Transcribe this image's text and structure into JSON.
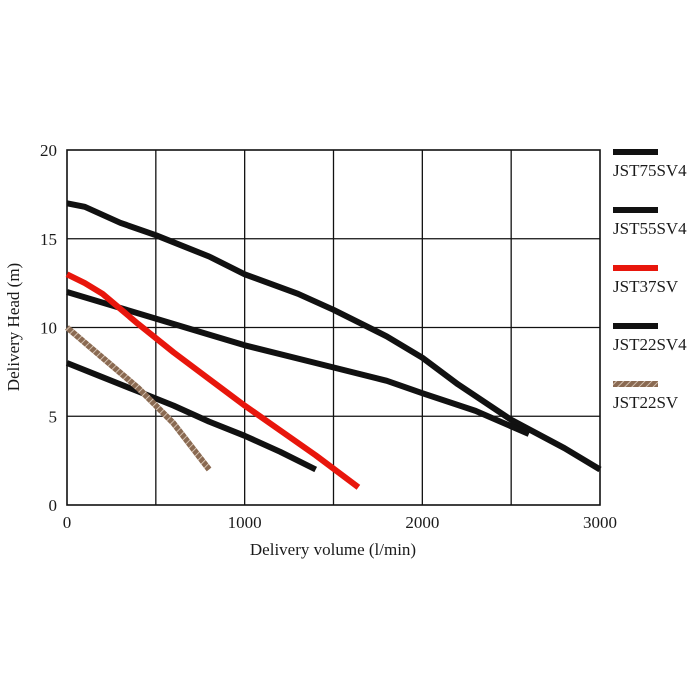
{
  "chart_data": {
    "type": "line",
    "title": "",
    "xlabel": "Delivery volume (l/min)",
    "ylabel": "Delivery Head (m)",
    "xlim": [
      0,
      3000
    ],
    "ylim": [
      0,
      20
    ],
    "x_ticks": [
      "0",
      "1000",
      "2000",
      "3000"
    ],
    "y_ticks": [
      "0",
      "5",
      "10",
      "15",
      "20"
    ],
    "x_grid_step": 500,
    "y_grid_step": 5,
    "grid": true,
    "legend_position": "right",
    "series": [
      {
        "name": "JST75SV4",
        "color": "#111111",
        "pattern": "solid",
        "points": [
          [
            0,
            17
          ],
          [
            100,
            16.8
          ],
          [
            300,
            15.9
          ],
          [
            500,
            15.2
          ],
          [
            800,
            14
          ],
          [
            1000,
            13
          ],
          [
            1300,
            11.9
          ],
          [
            1500,
            11
          ],
          [
            1800,
            9.5
          ],
          [
            2000,
            8.3
          ],
          [
            2200,
            6.8
          ],
          [
            2500,
            4.8
          ],
          [
            2800,
            3.2
          ],
          [
            3000,
            2
          ]
        ]
      },
      {
        "name": "JST55SV4",
        "color": "#111111",
        "pattern": "solid",
        "points": [
          [
            0,
            12
          ],
          [
            200,
            11.4
          ],
          [
            500,
            10.5
          ],
          [
            800,
            9.6
          ],
          [
            1000,
            9
          ],
          [
            1400,
            8
          ],
          [
            1800,
            7
          ],
          [
            2000,
            6.3
          ],
          [
            2300,
            5.3
          ],
          [
            2600,
            4
          ]
        ]
      },
      {
        "name": "JST37SV",
        "color": "#e8160c",
        "pattern": "solid",
        "points": [
          [
            0,
            13
          ],
          [
            100,
            12.5
          ],
          [
            200,
            11.9
          ],
          [
            400,
            10.2
          ],
          [
            600,
            8.6
          ],
          [
            800,
            7.1
          ],
          [
            1000,
            5.6
          ],
          [
            1200,
            4.2
          ],
          [
            1400,
            2.8
          ],
          [
            1640,
            1
          ]
        ]
      },
      {
        "name": "JST22SV4",
        "color": "#111111",
        "pattern": "solid",
        "points": [
          [
            0,
            8
          ],
          [
            200,
            7.2
          ],
          [
            400,
            6.4
          ],
          [
            600,
            5.6
          ],
          [
            800,
            4.7
          ],
          [
            1000,
            3.9
          ],
          [
            1200,
            3
          ],
          [
            1400,
            2
          ]
        ]
      },
      {
        "name": "JST22SV",
        "color": "#7a5a44",
        "pattern": "hatched",
        "points": [
          [
            0,
            10
          ],
          [
            200,
            8.3
          ],
          [
            400,
            6.6
          ],
          [
            600,
            4.6
          ],
          [
            800,
            2
          ]
        ]
      }
    ]
  }
}
